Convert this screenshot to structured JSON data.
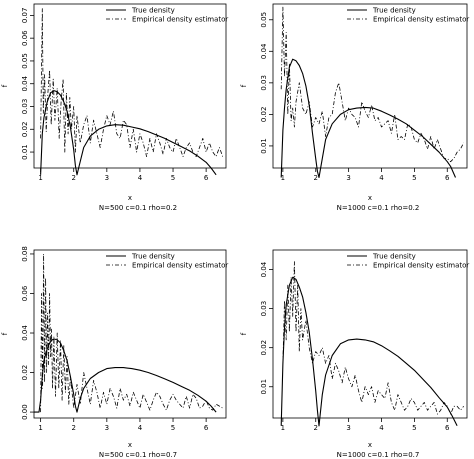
{
  "chart_data": [
    {
      "type": "line",
      "xlabel": "x",
      "ylabel": "f",
      "caption": "N=500  c=0.1   rho=0.2",
      "xlim": [
        0.8,
        6.6
      ],
      "ylim": [
        0.003,
        0.075
      ],
      "xticks": [
        1,
        2,
        3,
        4,
        5,
        6
      ],
      "yticks": [
        0.01,
        0.02,
        0.03,
        0.04,
        0.05,
        0.06,
        0.07
      ],
      "ytick_labels": [
        "0.01",
        "0.02",
        "0.03",
        "0.04",
        "0.05",
        "0.06",
        "0.07"
      ],
      "legend_position": "top-right",
      "series": [
        {
          "name": "True density",
          "style": "solid",
          "x": [
            1.0,
            1.05,
            1.1,
            1.2,
            1.3,
            1.4,
            1.5,
            1.6,
            1.7,
            1.8,
            1.9,
            2.0,
            2.05,
            2.1,
            2.2,
            2.3,
            2.5,
            2.75,
            3.0,
            3.25,
            3.5,
            3.75,
            4.0,
            4.25,
            4.5,
            4.75,
            5.0,
            5.25,
            5.5,
            5.75,
            6.0,
            6.15,
            6.3
          ],
          "y": [
            0.0,
            0.018,
            0.025,
            0.032,
            0.036,
            0.037,
            0.0365,
            0.035,
            0.032,
            0.028,
            0.021,
            0.011,
            0.004,
            0.0,
            0.006,
            0.012,
            0.017,
            0.02,
            0.0215,
            0.022,
            0.0218,
            0.021,
            0.0202,
            0.019,
            0.0175,
            0.016,
            0.0142,
            0.0124,
            0.0105,
            0.0082,
            0.0055,
            0.003,
            0.0
          ]
        },
        {
          "name": "Empirical density estimator",
          "style": "dashdot",
          "x": [
            1.0,
            1.05,
            1.08,
            1.12,
            1.17,
            1.22,
            1.27,
            1.32,
            1.38,
            1.43,
            1.5,
            1.56,
            1.62,
            1.68,
            1.73,
            1.78,
            1.83,
            1.88,
            1.93,
            2.0,
            2.05,
            2.1,
            2.2,
            2.3,
            2.4,
            2.5,
            2.6,
            2.7,
            2.8,
            2.9,
            3.0,
            3.1,
            3.2,
            3.3,
            3.4,
            3.5,
            3.6,
            3.7,
            3.8,
            3.9,
            4.0,
            4.1,
            4.2,
            4.3,
            4.4,
            4.5,
            4.6,
            4.7,
            4.8,
            4.9,
            5.0,
            5.1,
            5.2,
            5.3,
            5.4,
            5.5,
            5.6,
            5.7,
            5.8,
            5.9,
            6.0,
            6.1,
            6.2,
            6.3,
            6.4,
            6.5
          ],
          "y": [
            0.016,
            0.073,
            0.027,
            0.044,
            0.019,
            0.036,
            0.046,
            0.022,
            0.042,
            0.024,
            0.038,
            0.016,
            0.032,
            0.042,
            0.01,
            0.036,
            0.018,
            0.034,
            0.02,
            0.03,
            0.01,
            0.026,
            0.014,
            0.022,
            0.026,
            0.014,
            0.024,
            0.018,
            0.012,
            0.02,
            0.026,
            0.022,
            0.028,
            0.018,
            0.016,
            0.024,
            0.022,
            0.012,
            0.02,
            0.01,
            0.018,
            0.014,
            0.008,
            0.016,
            0.01,
            0.018,
            0.014,
            0.009,
            0.016,
            0.012,
            0.01,
            0.016,
            0.012,
            0.008,
            0.012,
            0.014,
            0.01,
            0.008,
            0.012,
            0.016,
            0.01,
            0.014,
            0.01,
            0.008,
            0.012,
            0.008
          ]
        }
      ]
    },
    {
      "type": "line",
      "xlabel": "x",
      "ylabel": "f",
      "caption": "N=1000  c=0.1   rho=0.2",
      "xlim": [
        0.7,
        6.6
      ],
      "ylim": [
        0.003,
        0.055
      ],
      "xticks": [
        1,
        2,
        3,
        4,
        5,
        6
      ],
      "yticks": [
        0.01,
        0.02,
        0.03,
        0.04,
        0.05
      ],
      "ytick_labels": [
        "0.01",
        "0.02",
        "0.03",
        "0.04",
        "0.05"
      ],
      "legend_position": "top-right",
      "series": [
        {
          "name": "True density",
          "style": "solid",
          "x": [
            0.95,
            1.0,
            1.05,
            1.1,
            1.2,
            1.3,
            1.4,
            1.5,
            1.6,
            1.7,
            1.8,
            1.9,
            2.0,
            2.05,
            2.1,
            2.2,
            2.3,
            2.5,
            2.75,
            3.0,
            3.25,
            3.5,
            3.75,
            4.0,
            4.25,
            4.5,
            4.75,
            5.0,
            5.25,
            5.5,
            5.75,
            6.0,
            6.1,
            6.25
          ],
          "y": [
            0.0,
            0.015,
            0.022,
            0.028,
            0.035,
            0.0375,
            0.037,
            0.0355,
            0.033,
            0.029,
            0.023,
            0.014,
            0.006,
            0.002,
            0.0,
            0.006,
            0.012,
            0.017,
            0.02,
            0.0215,
            0.022,
            0.0222,
            0.022,
            0.021,
            0.0198,
            0.0185,
            0.017,
            0.015,
            0.013,
            0.0105,
            0.008,
            0.005,
            0.0035,
            0.0
          ]
        },
        {
          "name": "Empirical density estimator",
          "style": "dashdot",
          "x": [
            0.95,
            1.0,
            1.05,
            1.1,
            1.15,
            1.2,
            1.25,
            1.3,
            1.35,
            1.4,
            1.5,
            1.6,
            1.7,
            1.8,
            1.9,
            2.0,
            2.1,
            2.2,
            2.3,
            2.4,
            2.5,
            2.6,
            2.7,
            2.8,
            2.9,
            3.0,
            3.1,
            3.2,
            3.3,
            3.4,
            3.5,
            3.6,
            3.7,
            3.8,
            3.9,
            4.0,
            4.1,
            4.2,
            4.3,
            4.4,
            4.5,
            4.6,
            4.7,
            4.8,
            4.9,
            5.0,
            5.1,
            5.2,
            5.3,
            5.4,
            5.5,
            5.6,
            5.7,
            5.8,
            5.9,
            6.0,
            6.1,
            6.2,
            6.3,
            6.4,
            6.5
          ],
          "y": [
            0.028,
            0.054,
            0.032,
            0.046,
            0.02,
            0.036,
            0.018,
            0.022,
            0.016,
            0.024,
            0.03,
            0.022,
            0.02,
            0.024,
            0.016,
            0.019,
            0.017,
            0.021,
            0.013,
            0.019,
            0.02,
            0.027,
            0.03,
            0.024,
            0.018,
            0.022,
            0.02,
            0.019,
            0.016,
            0.024,
            0.021,
            0.019,
            0.023,
            0.018,
            0.019,
            0.016,
            0.017,
            0.018,
            0.014,
            0.02,
            0.012,
            0.013,
            0.012,
            0.017,
            0.016,
            0.012,
            0.011,
            0.014,
            0.012,
            0.009,
            0.013,
            0.009,
            0.012,
            0.009,
            0.006,
            0.006,
            0.005,
            0.006,
            0.008,
            0.009,
            0.011
          ]
        }
      ]
    },
    {
      "type": "line",
      "xlabel": "x",
      "ylabel": "f",
      "caption": "N=500  c=0.1   rho=0.7",
      "xlim": [
        0.8,
        6.6
      ],
      "ylim": [
        -0.003,
        0.082
      ],
      "xticks": [
        1,
        2,
        3,
        4,
        5,
        6
      ],
      "yticks": [
        0.0,
        0.02,
        0.04,
        0.06,
        0.08
      ],
      "ytick_labels": [
        "0.00",
        "0.02",
        "0.04",
        "0.06",
        "0.08"
      ],
      "legend_position": "top-right",
      "series": [
        {
          "name": "True density",
          "style": "solid",
          "x": [
            0.8,
            0.95,
            1.0,
            1.05,
            1.1,
            1.2,
            1.3,
            1.4,
            1.5,
            1.6,
            1.7,
            1.8,
            1.9,
            2.0,
            2.05,
            2.1,
            2.2,
            2.3,
            2.5,
            2.75,
            3.0,
            3.25,
            3.5,
            3.75,
            4.0,
            4.25,
            4.5,
            4.75,
            5.0,
            5.25,
            5.5,
            5.75,
            6.0,
            6.15,
            6.3
          ],
          "y": [
            0.0,
            0.0,
            0.006,
            0.018,
            0.026,
            0.032,
            0.036,
            0.037,
            0.0365,
            0.035,
            0.031,
            0.026,
            0.018,
            0.009,
            0.003,
            0.0,
            0.007,
            0.012,
            0.017,
            0.02,
            0.022,
            0.0225,
            0.0225,
            0.022,
            0.0212,
            0.02,
            0.0185,
            0.0168,
            0.015,
            0.013,
            0.011,
            0.0085,
            0.0055,
            0.003,
            0.0
          ]
        },
        {
          "name": "Empirical density estimator",
          "style": "dashdot",
          "x": [
            1.0,
            1.03,
            1.06,
            1.09,
            1.12,
            1.15,
            1.18,
            1.21,
            1.24,
            1.27,
            1.3,
            1.33,
            1.36,
            1.4,
            1.45,
            1.5,
            1.55,
            1.6,
            1.65,
            1.7,
            1.75,
            1.8,
            1.85,
            1.9,
            2.0,
            2.1,
            2.2,
            2.3,
            2.4,
            2.5,
            2.6,
            2.7,
            2.8,
            2.9,
            3.0,
            3.1,
            3.2,
            3.3,
            3.4,
            3.5,
            3.6,
            3.7,
            3.8,
            3.9,
            4.0,
            4.1,
            4.2,
            4.3,
            4.4,
            4.5,
            4.6,
            4.7,
            4.8,
            4.9,
            5.0,
            5.1,
            5.2,
            5.3,
            5.4,
            5.5,
            5.6,
            5.7,
            5.8,
            5.9,
            6.0,
            6.1,
            6.2,
            6.3,
            6.4,
            6.5
          ],
          "y": [
            0.0,
            0.06,
            0.012,
            0.08,
            0.015,
            0.068,
            0.02,
            0.05,
            0.024,
            0.06,
            0.028,
            0.042,
            0.012,
            0.038,
            0.008,
            0.04,
            0.012,
            0.036,
            0.006,
            0.034,
            0.01,
            0.028,
            0.004,
            0.018,
            0.002,
            0.014,
            0.004,
            0.02,
            0.012,
            0.004,
            0.016,
            0.01,
            0.002,
            0.01,
            0.004,
            0.012,
            0.008,
            0.002,
            0.012,
            0.006,
            0.009,
            0.003,
            0.01,
            0.006,
            0.002,
            0.009,
            0.005,
            0.001,
            0.006,
            0.01,
            0.008,
            0.004,
            0.001,
            0.006,
            0.009,
            0.006,
            0.004,
            0.002,
            0.008,
            0.002,
            0.009,
            0.007,
            0.002,
            0.003,
            0.006,
            0.002,
            0.001,
            0.004,
            0.003,
            0.002
          ]
        }
      ]
    },
    {
      "type": "line",
      "xlabel": "x",
      "ylabel": "f",
      "caption": "N=1000  c=0.1   rho=0.7",
      "xlim": [
        0.7,
        6.6
      ],
      "ylim": [
        0.002,
        0.045
      ],
      "xticks": [
        1,
        2,
        3,
        4,
        5,
        6
      ],
      "yticks": [
        0.01,
        0.02,
        0.03,
        0.04
      ],
      "ytick_labels": [
        "0.01",
        "0.02",
        "0.03",
        "0.04"
      ],
      "legend_position": "top-right",
      "series": [
        {
          "name": "True density",
          "style": "solid",
          "x": [
            0.95,
            1.0,
            1.05,
            1.1,
            1.2,
            1.3,
            1.4,
            1.5,
            1.6,
            1.7,
            1.8,
            1.9,
            2.0,
            2.05,
            2.1,
            2.2,
            2.3,
            2.5,
            2.75,
            3.0,
            3.25,
            3.5,
            3.75,
            4.0,
            4.25,
            4.5,
            4.75,
            5.0,
            5.25,
            5.5,
            5.75,
            6.0,
            6.15,
            6.3
          ],
          "y": [
            0.0,
            0.016,
            0.025,
            0.031,
            0.036,
            0.038,
            0.0375,
            0.0355,
            0.033,
            0.029,
            0.024,
            0.017,
            0.009,
            0.004,
            0.0,
            0.008,
            0.013,
            0.018,
            0.021,
            0.022,
            0.0222,
            0.022,
            0.0215,
            0.0205,
            0.0192,
            0.0178,
            0.016,
            0.0142,
            0.012,
            0.0098,
            0.0072,
            0.0048,
            0.0025,
            0.0
          ]
        },
        {
          "name": "Empirical density estimator",
          "style": "dashdot",
          "x": [
            1.0,
            1.05,
            1.1,
            1.15,
            1.2,
            1.25,
            1.3,
            1.35,
            1.4,
            1.45,
            1.5,
            1.55,
            1.6,
            1.7,
            1.8,
            1.9,
            2.0,
            2.1,
            2.2,
            2.3,
            2.4,
            2.5,
            2.6,
            2.7,
            2.8,
            2.9,
            3.0,
            3.1,
            3.2,
            3.3,
            3.4,
            3.5,
            3.6,
            3.7,
            3.8,
            3.9,
            4.0,
            4.1,
            4.2,
            4.3,
            4.4,
            4.5,
            4.6,
            4.7,
            4.8,
            4.9,
            5.0,
            5.1,
            5.2,
            5.3,
            5.4,
            5.5,
            5.6,
            5.7,
            5.8,
            5.9,
            6.0,
            6.1,
            6.2,
            6.3,
            6.4,
            6.5
          ],
          "y": [
            0.016,
            0.032,
            0.022,
            0.036,
            0.024,
            0.038,
            0.028,
            0.042,
            0.024,
            0.036,
            0.019,
            0.03,
            0.022,
            0.027,
            0.02,
            0.016,
            0.019,
            0.018,
            0.02,
            0.016,
            0.018,
            0.012,
            0.016,
            0.014,
            0.011,
            0.015,
            0.012,
            0.01,
            0.013,
            0.009,
            0.006,
            0.01,
            0.008,
            0.01,
            0.006,
            0.009,
            0.008,
            0.007,
            0.011,
            0.006,
            0.004,
            0.008,
            0.006,
            0.004,
            0.005,
            0.007,
            0.006,
            0.004,
            0.005,
            0.006,
            0.004,
            0.005,
            0.006,
            0.003,
            0.004,
            0.006,
            0.005,
            0.003,
            0.005,
            0.005,
            0.004,
            0.005
          ]
        }
      ]
    }
  ]
}
